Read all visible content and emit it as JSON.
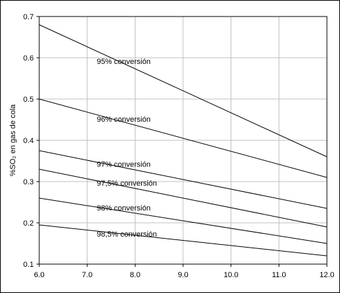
{
  "chart_data": {
    "type": "line",
    "title": "",
    "xlabel": "",
    "ylabel": "%SO₂ en gas de cola",
    "xlim": [
      6.0,
      12.0
    ],
    "ylim": [
      0.1,
      0.7
    ],
    "grid": true,
    "x_ticks": [
      "6.0",
      "7.0",
      "8.0",
      "9.0",
      "10.0",
      "11.0",
      "12.0"
    ],
    "y_ticks": [
      "0.1",
      "0.2",
      "0.3",
      "0.4",
      "0.5",
      "0.6",
      "0.7"
    ],
    "x": [
      6.0,
      12.0
    ],
    "series": [
      {
        "name": "95% conversión",
        "values": [
          0.68,
          0.36
        ],
        "label_at": [
          7.2,
          0.585
        ]
      },
      {
        "name": "96% conversión",
        "values": [
          0.5,
          0.31
        ],
        "label_at": [
          7.2,
          0.445
        ]
      },
      {
        "name": "97% conversión",
        "values": [
          0.375,
          0.235
        ],
        "label_at": [
          7.2,
          0.336
        ]
      },
      {
        "name": "97,5% conversión",
        "values": [
          0.33,
          0.19
        ],
        "label_at": [
          7.2,
          0.29
        ]
      },
      {
        "name": "98% conversión",
        "values": [
          0.26,
          0.15
        ],
        "label_at": [
          7.2,
          0.23
        ]
      },
      {
        "name": "98,5% conversión",
        "values": [
          0.195,
          0.12
        ],
        "label_at": [
          7.2,
          0.167
        ]
      }
    ],
    "colors": {
      "line": "#000000",
      "grid": "#c0c0c0",
      "frame": "#000000"
    }
  }
}
